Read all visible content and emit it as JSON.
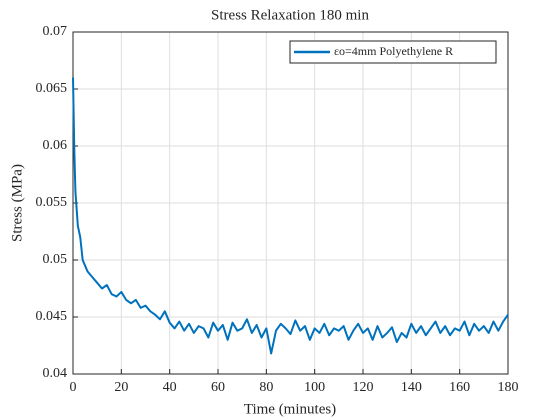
{
  "chart_data": {
    "type": "line",
    "title": "Stress Relaxation 180 min",
    "xlabel": "Time (minutes)",
    "ylabel": "Stress (MPa)",
    "xlim": [
      0,
      180
    ],
    "ylim": [
      0.04,
      0.07
    ],
    "xticks": [
      0,
      20,
      40,
      60,
      80,
      100,
      120,
      140,
      160,
      180
    ],
    "yticks": [
      0.04,
      0.045,
      0.05,
      0.055,
      0.06,
      0.065,
      0.07
    ],
    "grid": true,
    "legend": "upper right",
    "x": [
      0,
      0.5,
      1,
      2,
      3,
      4,
      5,
      6,
      8,
      10,
      12,
      14,
      16,
      18,
      20,
      22,
      24,
      26,
      28,
      30,
      32,
      34,
      36,
      38,
      40,
      42,
      44,
      46,
      48,
      50,
      52,
      54,
      56,
      58,
      60,
      62,
      64,
      66,
      68,
      70,
      72,
      74,
      76,
      78,
      80,
      82,
      84,
      86,
      88,
      90,
      92,
      94,
      96,
      98,
      100,
      102,
      104,
      106,
      108,
      110,
      112,
      114,
      116,
      118,
      120,
      122,
      124,
      126,
      128,
      130,
      132,
      134,
      136,
      138,
      140,
      142,
      144,
      146,
      148,
      150,
      152,
      154,
      156,
      158,
      160,
      162,
      164,
      166,
      168,
      170,
      172,
      174,
      176,
      178,
      180
    ],
    "series": [
      {
        "name": "εo=4mm Polyethylene R",
        "color": "#0072bd",
        "values": [
          0.066,
          0.06,
          0.056,
          0.053,
          0.052,
          0.05,
          0.0495,
          0.049,
          0.0485,
          0.048,
          0.0475,
          0.0478,
          0.047,
          0.0468,
          0.0472,
          0.0465,
          0.0462,
          0.0465,
          0.0458,
          0.046,
          0.0455,
          0.0452,
          0.0448,
          0.0455,
          0.0445,
          0.044,
          0.0446,
          0.0438,
          0.0444,
          0.0436,
          0.0442,
          0.044,
          0.0432,
          0.0445,
          0.0438,
          0.0443,
          0.043,
          0.0445,
          0.0438,
          0.044,
          0.0448,
          0.0436,
          0.0443,
          0.0432,
          0.044,
          0.0418,
          0.0438,
          0.0444,
          0.044,
          0.0435,
          0.0447,
          0.0438,
          0.0442,
          0.043,
          0.044,
          0.0436,
          0.0444,
          0.0434,
          0.044,
          0.0438,
          0.0442,
          0.043,
          0.0438,
          0.0444,
          0.0436,
          0.044,
          0.043,
          0.0442,
          0.0432,
          0.0436,
          0.0441,
          0.0428,
          0.0436,
          0.0432,
          0.0444,
          0.0436,
          0.0442,
          0.0434,
          0.044,
          0.0446,
          0.0436,
          0.0442,
          0.0434,
          0.044,
          0.0438,
          0.0446,
          0.0434,
          0.0444,
          0.0438,
          0.0442,
          0.0436,
          0.0446,
          0.0438,
          0.0446,
          0.0452
        ]
      }
    ]
  }
}
